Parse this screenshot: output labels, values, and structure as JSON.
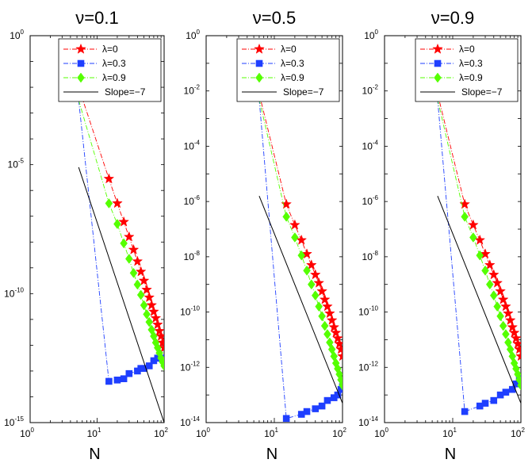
{
  "chart_data": {
    "type": "line",
    "x_scale": "log",
    "y_scale": "log",
    "xlabel": "N",
    "xlim": [
      1,
      100
    ],
    "x_ticks": [
      {
        "base": "10",
        "exp": "0"
      },
      {
        "base": "10",
        "exp": "1"
      },
      {
        "base": "10",
        "exp": "2"
      }
    ],
    "legend_position": "top-right",
    "legend_labels": [
      "λ=0",
      "λ=0.3",
      "λ=0.9",
      "Slope=−7"
    ],
    "styles": {
      "lambda0": {
        "color": "#ff0000",
        "marker": "star",
        "dash": "6,2,1,2"
      },
      "lambda03": {
        "color": "#1f3fff",
        "marker": "square",
        "dash": "6,2,1,2"
      },
      "lambda09": {
        "color": "#55ff00",
        "marker": "diamond",
        "dash": "6,2,1,2"
      },
      "slope": {
        "color": "#000000"
      }
    },
    "panels": [
      {
        "title": "ν=0.1",
        "ylim_exp": [
          -15,
          0
        ],
        "y_ticks": [
          {
            "base": "10",
            "exp": "0"
          },
          {
            "base": "10",
            "exp": "-5"
          },
          {
            "base": "10",
            "exp": "-10"
          },
          {
            "base": "10",
            "exp": "-15"
          }
        ],
        "series": [
          {
            "name": "λ=0",
            "key": "lambda0",
            "x": [
              5.3,
              15,
              20,
              25,
              30,
              35,
              40,
              45,
              50,
              55,
              60,
              65,
              70,
              75,
              80,
              85,
              90,
              95,
              100
            ],
            "y_exp": [
              -2,
              -5.55,
              -6.5,
              -7.22,
              -7.8,
              -8.3,
              -8.75,
              -9.15,
              -9.5,
              -9.85,
              -10.15,
              -10.45,
              -10.7,
              -10.95,
              -11.2,
              -11.45,
              -11.65,
              -11.9,
              -12.1
            ]
          },
          {
            "name": "λ=0.3",
            "key": "lambda03",
            "x": [
              5.3,
              15,
              20,
              25,
              30,
              40,
              45,
              50,
              60,
              70,
              80,
              90,
              100
            ],
            "y_exp": [
              -2.5,
              -13.4,
              -13.35,
              -13.3,
              -13.1,
              -13.0,
              -12.9,
              -12.9,
              -12.8,
              -12.6,
              -12.5,
              -12.5,
              -12.5
            ]
          },
          {
            "name": "λ=0.9",
            "key": "lambda09",
            "x": [
              5.3,
              15,
              20,
              25,
              30,
              35,
              40,
              45,
              50,
              55,
              60,
              65,
              70,
              75,
              80,
              85,
              90,
              95,
              100
            ],
            "y_exp": [
              -2.5,
              -6.5,
              -7.3,
              -8.05,
              -8.65,
              -9.2,
              -9.65,
              -10.05,
              -10.45,
              -10.8,
              -11.1,
              -11.4,
              -11.65,
              -11.9,
              -12.1,
              -12.3,
              -12.5,
              -12.65,
              -12.8
            ]
          },
          {
            "name": "Slope=−7",
            "key": "slope",
            "x": [
              5.3,
              100
            ],
            "y_exp": [
              -5.1,
              -15
            ]
          }
        ]
      },
      {
        "title": "ν=0.5",
        "ylim_exp": [
          -14,
          0
        ],
        "y_ticks": [
          {
            "base": "10",
            "exp": "0"
          },
          {
            "base": "10",
            "exp": "-2"
          },
          {
            "base": "10",
            "exp": "-4"
          },
          {
            "base": "10",
            "exp": "-6"
          },
          {
            "base": "10",
            "exp": "-8"
          },
          {
            "base": "10",
            "exp": "-10"
          },
          {
            "base": "10",
            "exp": "-12"
          },
          {
            "base": "10",
            "exp": "-14"
          }
        ],
        "series": [
          {
            "name": "λ=0",
            "key": "lambda0",
            "x": [
              6,
              15,
              20,
              25,
              30,
              35,
              40,
              45,
              50,
              55,
              60,
              65,
              70,
              75,
              80,
              85,
              90,
              95,
              100
            ],
            "y_exp": [
              -2.1,
              -6.1,
              -6.85,
              -7.4,
              -7.9,
              -8.3,
              -8.65,
              -8.95,
              -9.25,
              -9.55,
              -9.8,
              -10.05,
              -10.3,
              -10.55,
              -10.75,
              -10.95,
              -11.15,
              -11.35,
              -11.6
            ]
          },
          {
            "name": "λ=0.3",
            "key": "lambda03",
            "x": [
              6,
              15,
              25,
              30,
              40,
              50,
              60,
              75,
              85,
              95,
              100
            ],
            "y_exp": [
              -2.3,
              -13.85,
              -13.7,
              -13.6,
              -13.5,
              -13.4,
              -13.2,
              -13.1,
              -13.0,
              -12.8,
              -12.7
            ]
          },
          {
            "name": "λ=0.9",
            "key": "lambda09",
            "x": [
              6,
              15,
              20,
              25,
              30,
              35,
              40,
              45,
              50,
              55,
              60,
              65,
              70,
              75,
              80,
              85,
              90,
              95,
              100
            ],
            "y_exp": [
              -2.3,
              -6.55,
              -7.3,
              -7.95,
              -8.5,
              -9.0,
              -9.4,
              -9.8,
              -10.15,
              -10.5,
              -10.8,
              -11.1,
              -11.35,
              -11.6,
              -11.85,
              -12.05,
              -12.25,
              -12.45,
              -12.65
            ]
          },
          {
            "name": "Slope=−7",
            "key": "slope",
            "x": [
              6,
              100
            ],
            "y_exp": [
              -5.8,
              -13.3
            ]
          }
        ]
      },
      {
        "title": "ν=0.9",
        "ylim_exp": [
          -14,
          0
        ],
        "y_ticks": [
          {
            "base": "10",
            "exp": "0"
          },
          {
            "base": "10",
            "exp": "-2"
          },
          {
            "base": "10",
            "exp": "-4"
          },
          {
            "base": "10",
            "exp": "-6"
          },
          {
            "base": "10",
            "exp": "-8"
          },
          {
            "base": "10",
            "exp": "-10"
          },
          {
            "base": "10",
            "exp": "-12"
          },
          {
            "base": "10",
            "exp": "-14"
          }
        ],
        "series": [
          {
            "name": "λ=0",
            "key": "lambda0",
            "x": [
              6,
              15,
              20,
              25,
              30,
              35,
              40,
              45,
              50,
              55,
              60,
              65,
              70,
              75,
              80,
              85,
              90,
              95,
              100
            ],
            "y_exp": [
              -2.1,
              -6.1,
              -6.85,
              -7.4,
              -7.9,
              -8.3,
              -8.65,
              -8.95,
              -9.25,
              -9.55,
              -9.8,
              -10.05,
              -10.3,
              -10.55,
              -10.75,
              -10.95,
              -11.15,
              -11.35,
              -11.6
            ]
          },
          {
            "name": "λ=0.3",
            "key": "lambda03",
            "x": [
              6,
              15,
              25,
              30,
              40,
              50,
              60,
              75,
              85,
              95,
              100
            ],
            "y_exp": [
              -2.3,
              -13.6,
              -13.4,
              -13.3,
              -13.2,
              -13.0,
              -12.9,
              -12.8,
              -12.6,
              -12.45,
              -12.35
            ]
          },
          {
            "name": "λ=0.9",
            "key": "lambda09",
            "x": [
              6,
              15,
              20,
              25,
              30,
              35,
              40,
              45,
              50,
              55,
              60,
              65,
              70,
              75,
              80,
              85,
              90,
              95,
              100
            ],
            "y_exp": [
              -2.3,
              -6.55,
              -7.3,
              -7.95,
              -8.5,
              -9.0,
              -9.4,
              -9.8,
              -10.15,
              -10.5,
              -10.8,
              -11.1,
              -11.35,
              -11.6,
              -11.85,
              -12.05,
              -12.25,
              -12.45,
              -12.65
            ]
          },
          {
            "name": "Slope=−7",
            "key": "slope",
            "x": [
              6,
              100
            ],
            "y_exp": [
              -5.8,
              -13.3
            ]
          }
        ]
      }
    ]
  }
}
